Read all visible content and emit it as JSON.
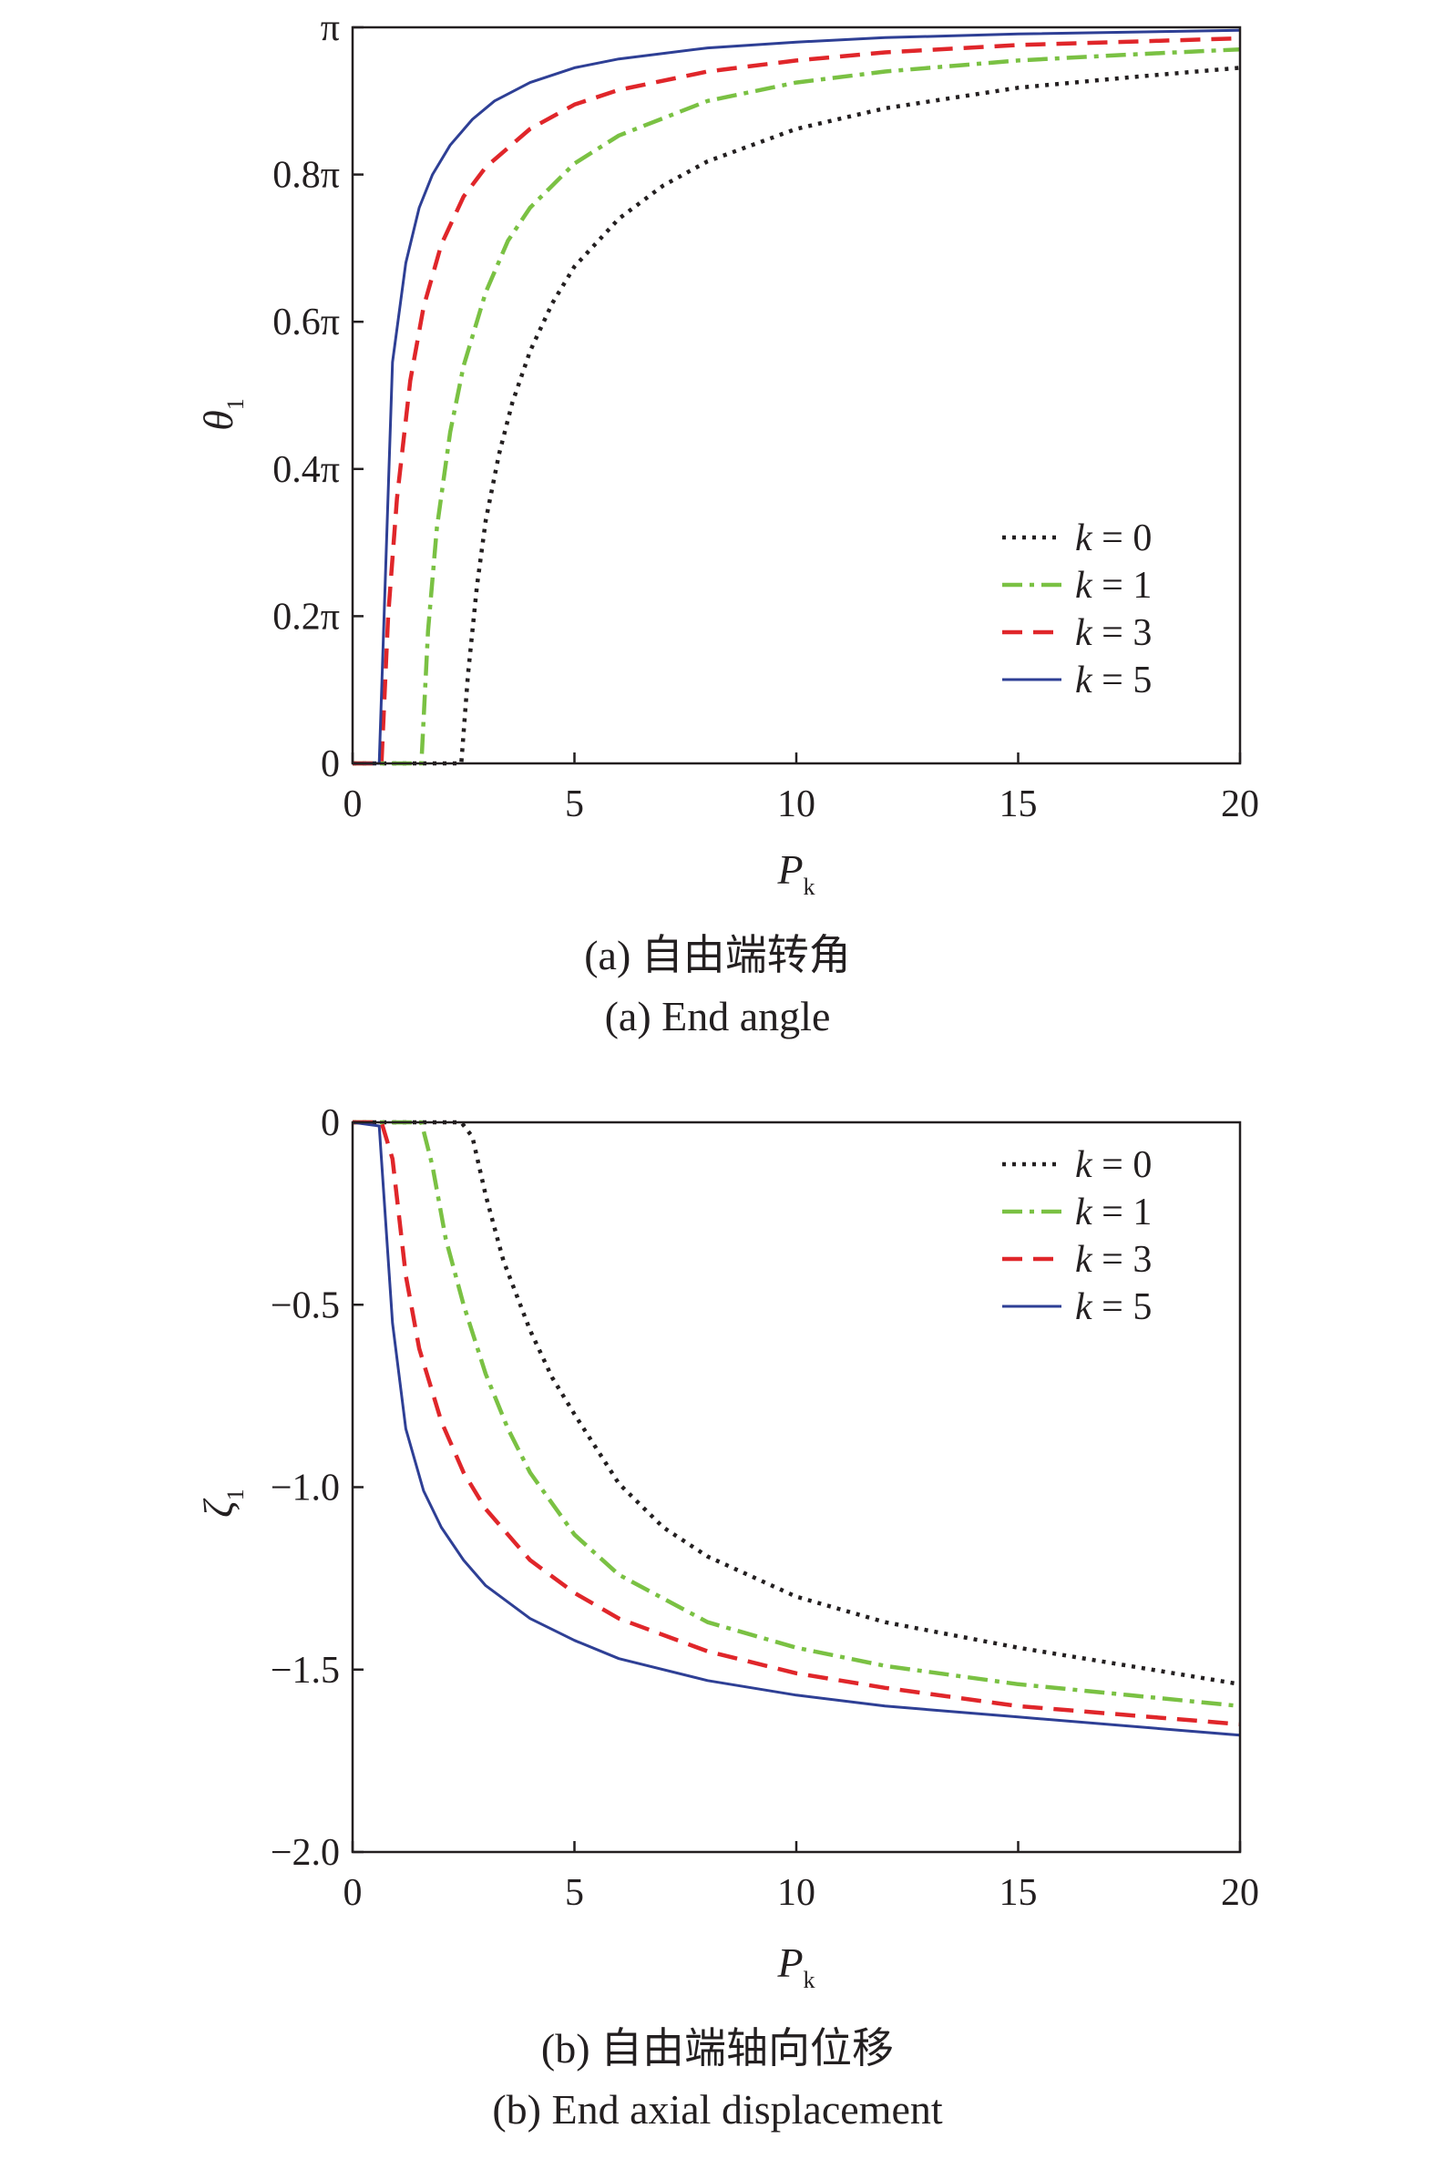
{
  "colors": {
    "k0": "#231f20",
    "k1": "#7ac143",
    "k3": "#e0262a",
    "k5": "#2e3f95"
  },
  "chart_data": [
    {
      "type": "line",
      "caption_cn": "(a) 自由端转角",
      "caption_en": "(a) End angle",
      "xlabel": "P",
      "xlabel_sub": "k",
      "ylabel": "θ",
      "ylabel_sub": "1",
      "xlim": [
        0,
        20
      ],
      "ylim": [
        0,
        1
      ],
      "xticks": [
        0,
        5,
        10,
        15,
        20
      ],
      "xtick_labels": [
        "0",
        "5",
        "10",
        "15",
        "20"
      ],
      "yticks": [
        0,
        0.2,
        0.4,
        0.6,
        0.8,
        1.0
      ],
      "ytick_labels": [
        "0",
        "0.2π",
        "0.4π",
        "0.6π",
        "0.8π",
        "π"
      ],
      "y_unit_note": "values in units of π",
      "legend_position": "lower-right",
      "series": [
        {
          "name": "k = 0",
          "legend_k": "k",
          "legend_eq": " = 0",
          "style": "dotted",
          "color_key": "k0",
          "x": [
            0,
            2.45,
            2.6,
            2.8,
            3.0,
            3.3,
            3.6,
            4.0,
            4.5,
            5,
            6,
            7,
            8,
            10,
            12,
            15,
            17.5,
            20
          ],
          "y": [
            0,
            0,
            0.12,
            0.24,
            0.33,
            0.42,
            0.49,
            0.56,
            0.625,
            0.675,
            0.74,
            0.785,
            0.818,
            0.862,
            0.89,
            0.918,
            0.932,
            0.945
          ]
        },
        {
          "name": "k = 1",
          "legend_k": "k",
          "legend_eq": " = 1",
          "style": "dashdot",
          "color_key": "k1",
          "x": [
            0,
            1.55,
            1.7,
            1.9,
            2.2,
            2.5,
            3.0,
            3.5,
            4.0,
            5,
            6,
            8,
            10,
            12,
            15,
            17.5,
            20
          ],
          "y": [
            0,
            0,
            0.18,
            0.32,
            0.45,
            0.54,
            0.64,
            0.71,
            0.755,
            0.815,
            0.853,
            0.9,
            0.925,
            0.94,
            0.955,
            0.963,
            0.97
          ]
        },
        {
          "name": "k = 3",
          "legend_k": "k",
          "legend_eq": " = 3",
          "style": "dashed",
          "color_key": "k3",
          "x": [
            0,
            0.65,
            0.8,
            1.0,
            1.3,
            1.6,
            2.0,
            2.5,
            3.0,
            4.0,
            5,
            6,
            8,
            10,
            12,
            15,
            20
          ],
          "y": [
            0,
            0,
            0.2,
            0.36,
            0.52,
            0.62,
            0.705,
            0.77,
            0.81,
            0.862,
            0.895,
            0.915,
            0.94,
            0.955,
            0.966,
            0.976,
            0.985
          ]
        },
        {
          "name": "k = 5",
          "legend_k": "k",
          "legend_eq": " = 5",
          "style": "solid",
          "color_key": "k5",
          "x": [
            0,
            0.6,
            0.9,
            1.2,
            1.5,
            1.8,
            2.2,
            2.7,
            3.2,
            4.0,
            5,
            6,
            8,
            10,
            12,
            15,
            20
          ],
          "y": [
            0,
            0,
            0.545,
            0.68,
            0.755,
            0.8,
            0.84,
            0.875,
            0.9,
            0.925,
            0.945,
            0.957,
            0.972,
            0.98,
            0.986,
            0.991,
            0.996
          ]
        }
      ]
    },
    {
      "type": "line",
      "caption_cn": "(b) 自由端轴向位移",
      "caption_en": "(b) End axial displacement",
      "xlabel": "P",
      "xlabel_sub": "k",
      "ylabel": "ζ",
      "ylabel_sub": "1",
      "xlim": [
        0,
        20
      ],
      "ylim": [
        -2.0,
        0
      ],
      "xticks": [
        0,
        5,
        10,
        15,
        20
      ],
      "xtick_labels": [
        "0",
        "5",
        "10",
        "15",
        "20"
      ],
      "yticks": [
        0,
        -0.5,
        -1.0,
        -1.5,
        -2.0
      ],
      "ytick_labels": [
        "0",
        "−0.5",
        "−1.0",
        "−1.5",
        "−2.0"
      ],
      "legend_position": "top-right",
      "series": [
        {
          "name": "k = 0",
          "legend_k": "k",
          "legend_eq": " = 0",
          "style": "dotted",
          "color_key": "k0",
          "x": [
            0,
            2.45,
            2.7,
            3.0,
            3.4,
            4.0,
            4.5,
            5,
            6,
            7,
            8,
            10,
            12,
            15,
            17.5,
            20
          ],
          "y": [
            0,
            0,
            -0.04,
            -0.2,
            -0.38,
            -0.57,
            -0.7,
            -0.8,
            -0.99,
            -1.11,
            -1.19,
            -1.3,
            -1.37,
            -1.44,
            -1.49,
            -1.54
          ]
        },
        {
          "name": "k = 1",
          "legend_k": "k",
          "legend_eq": " = 1",
          "style": "dashdot",
          "color_key": "k1",
          "x": [
            0,
            1.55,
            1.8,
            2.1,
            2.5,
            3.0,
            3.5,
            4.0,
            5,
            6,
            8,
            10,
            12,
            15,
            17.5,
            20
          ],
          "y": [
            0,
            0,
            -0.12,
            -0.32,
            -0.5,
            -0.69,
            -0.84,
            -0.96,
            -1.13,
            -1.24,
            -1.37,
            -1.44,
            -1.49,
            -1.54,
            -1.57,
            -1.6
          ]
        },
        {
          "name": "k = 3",
          "legend_k": "k",
          "legend_eq": " = 3",
          "style": "dashed",
          "color_key": "k3",
          "x": [
            0,
            0.65,
            0.9,
            1.2,
            1.5,
            2.0,
            2.5,
            3.0,
            4.0,
            5,
            6,
            8,
            10,
            12,
            15,
            20
          ],
          "y": [
            0,
            0,
            -0.1,
            -0.42,
            -0.62,
            -0.82,
            -0.96,
            -1.06,
            -1.2,
            -1.29,
            -1.36,
            -1.45,
            -1.51,
            -1.55,
            -1.6,
            -1.65
          ]
        },
        {
          "name": "k = 5",
          "legend_k": "k",
          "legend_eq": " = 5",
          "style": "solid",
          "color_key": "k5",
          "x": [
            0,
            0.6,
            0.9,
            1.2,
            1.6,
            2.0,
            2.5,
            3.0,
            4.0,
            5,
            6,
            8,
            10,
            12,
            15,
            20
          ],
          "y": [
            0,
            -0.01,
            -0.55,
            -0.84,
            -1.01,
            -1.11,
            -1.2,
            -1.27,
            -1.36,
            -1.42,
            -1.47,
            -1.53,
            -1.57,
            -1.6,
            -1.63,
            -1.68
          ]
        }
      ]
    }
  ]
}
